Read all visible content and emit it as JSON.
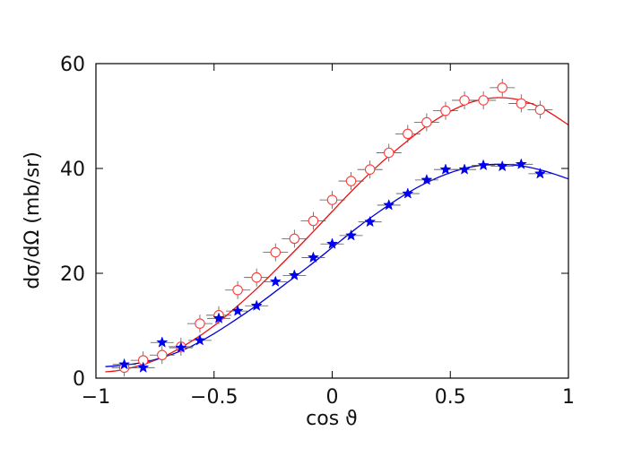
{
  "chart_data": {
    "type": "scatter",
    "xlabel": "cos ϑ",
    "ylabel": "dσ/dΩ (mb/sr)",
    "xlim": [
      -1,
      1
    ],
    "ylim": [
      0,
      60
    ],
    "xticks": [
      -1,
      -0.5,
      0,
      0.5,
      1
    ],
    "xtick_labels": [
      "−1",
      "−0.5",
      "0",
      "0.5",
      "1"
    ],
    "yticks": [
      0,
      20,
      40,
      60
    ],
    "ytick_labels": [
      "0",
      "20",
      "40",
      "60"
    ],
    "grid": false,
    "series": [
      {
        "marker": "circle",
        "color": "#ff3b3b",
        "points": [
          [
            -0.88,
            2.0
          ],
          [
            -0.8,
            3.4
          ],
          [
            -0.72,
            4.4
          ],
          [
            -0.64,
            6.0
          ],
          [
            -0.56,
            10.4
          ],
          [
            -0.48,
            12.0
          ],
          [
            -0.4,
            16.8
          ],
          [
            -0.32,
            19.2
          ],
          [
            -0.24,
            24.0
          ],
          [
            -0.16,
            26.6
          ],
          [
            -0.08,
            30.0
          ],
          [
            0.0,
            34.0
          ],
          [
            0.08,
            37.6
          ],
          [
            0.16,
            39.8
          ],
          [
            0.24,
            43.0
          ],
          [
            0.32,
            46.6
          ],
          [
            0.4,
            48.8
          ],
          [
            0.48,
            51.0
          ],
          [
            0.56,
            53.0
          ],
          [
            0.64,
            53.0
          ],
          [
            0.72,
            55.4
          ],
          [
            0.8,
            52.4
          ],
          [
            0.88,
            51.2
          ]
        ]
      },
      {
        "marker": "star",
        "color": "#0000ee",
        "points": [
          [
            -0.88,
            2.6
          ],
          [
            -0.8,
            2.0
          ],
          [
            -0.72,
            6.8
          ],
          [
            -0.64,
            5.8
          ],
          [
            -0.56,
            7.2
          ],
          [
            -0.48,
            11.4
          ],
          [
            -0.4,
            12.8
          ],
          [
            -0.32,
            13.8
          ],
          [
            -0.24,
            18.4
          ],
          [
            -0.16,
            19.6
          ],
          [
            -0.08,
            23.0
          ],
          [
            0.0,
            25.6
          ],
          [
            0.08,
            27.2
          ],
          [
            0.16,
            29.8
          ],
          [
            0.24,
            33.0
          ],
          [
            0.32,
            35.2
          ],
          [
            0.4,
            37.8
          ],
          [
            0.48,
            39.8
          ],
          [
            0.56,
            39.8
          ],
          [
            0.64,
            40.6
          ],
          [
            0.72,
            40.4
          ],
          [
            0.8,
            40.8
          ],
          [
            0.88,
            39.0
          ]
        ]
      }
    ],
    "fits": [
      {
        "color": "#ee1111",
        "x": [
          -0.96,
          -0.9,
          -0.8,
          -0.7,
          -0.6,
          -0.5,
          -0.4,
          -0.3,
          -0.2,
          -0.1,
          0.0,
          0.1,
          0.2,
          0.3,
          0.4,
          0.5,
          0.6,
          0.7,
          0.8,
          0.9,
          1.0
        ],
        "y": [
          1.2,
          1.5,
          2.6,
          4.4,
          6.9,
          10.0,
          13.8,
          17.9,
          22.4,
          27.0,
          31.8,
          36.5,
          40.8,
          44.6,
          48.1,
          50.9,
          52.8,
          53.5,
          53.0,
          51.2,
          48.3
        ]
      },
      {
        "color": "#0000dd",
        "x": [
          -0.96,
          -0.9,
          -0.8,
          -0.7,
          -0.6,
          -0.5,
          -0.4,
          -0.3,
          -0.2,
          -0.1,
          0.0,
          0.1,
          0.2,
          0.3,
          0.4,
          0.5,
          0.6,
          0.7,
          0.8,
          0.9,
          1.0
        ],
        "y": [
          2.2,
          2.4,
          3.0,
          4.2,
          6.0,
          8.5,
          11.4,
          14.5,
          17.9,
          21.3,
          24.9,
          28.5,
          31.8,
          34.8,
          37.3,
          39.2,
          40.4,
          40.8,
          40.5,
          39.5,
          38.0
        ]
      }
    ]
  }
}
